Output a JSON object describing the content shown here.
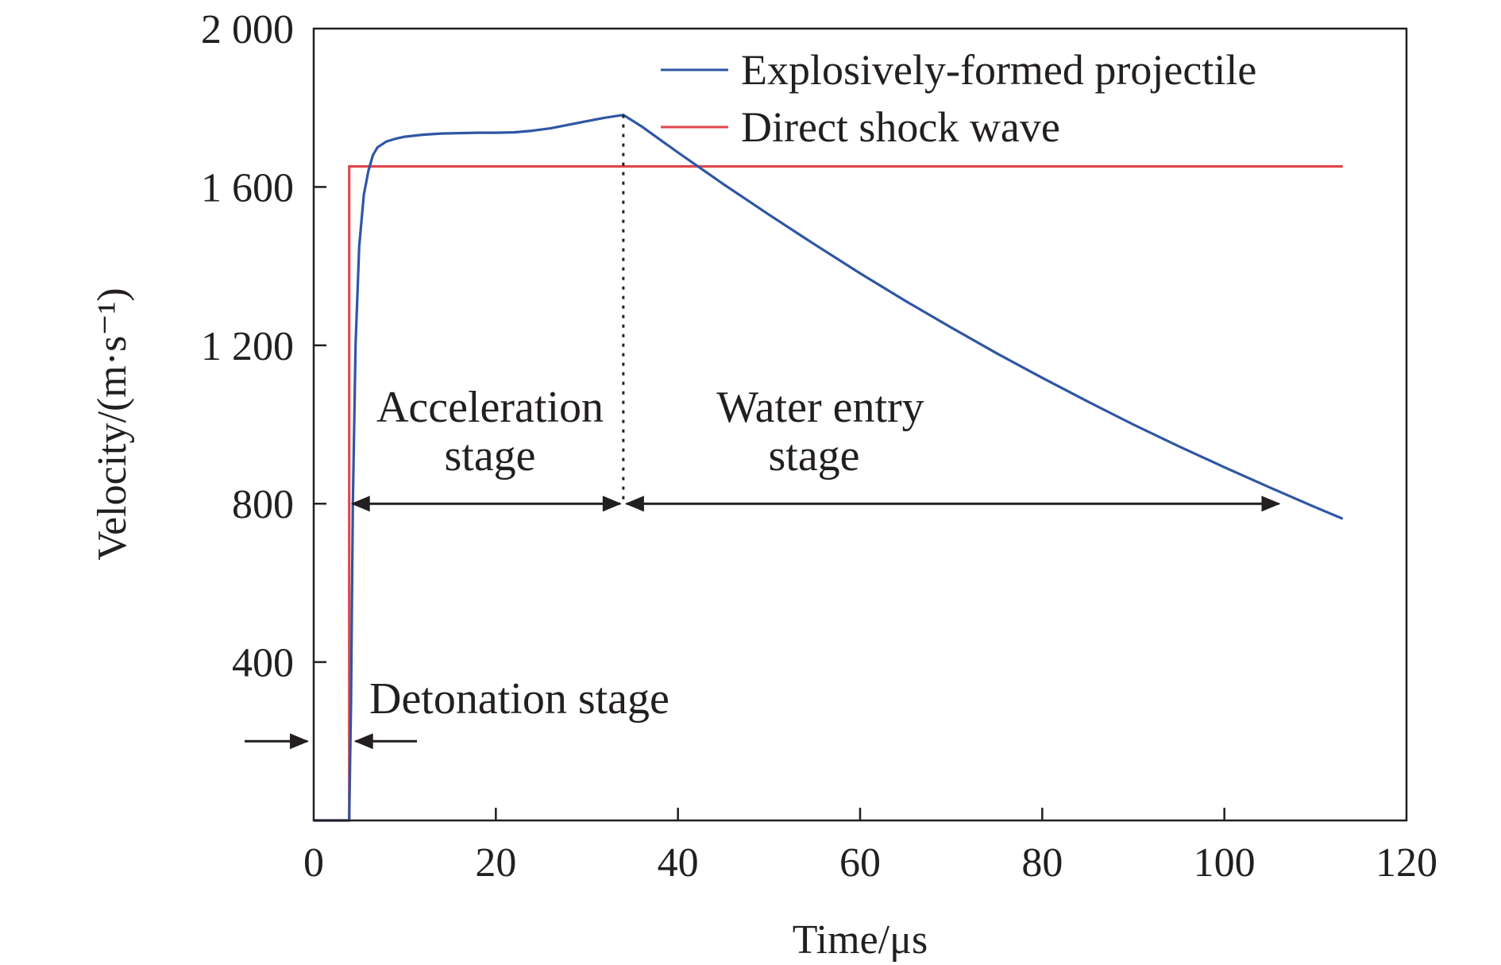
{
  "chart_data": {
    "type": "line",
    "title": "",
    "xlabel": "Time/μs",
    "ylabel": "Velocity/(m·s⁻¹)",
    "xlim": [
      0,
      120
    ],
    "ylim": [
      0,
      2000
    ],
    "x_ticks": [
      0,
      20,
      40,
      60,
      80,
      100,
      120
    ],
    "x_tick_labels": [
      "0",
      "20",
      "40",
      "60",
      "80",
      "100",
      "120"
    ],
    "y_ticks": [
      400,
      800,
      1200,
      1600,
      2000
    ],
    "y_tick_labels": [
      "400",
      "800",
      "1 200",
      "1 600",
      "2 000"
    ],
    "grid": false,
    "legend_position": "top-right",
    "series": [
      {
        "name": "Explosively-formed projectile",
        "color": "#2e56a3",
        "x": [
          0,
          3.9,
          4.1,
          4.3,
          4.6,
          5.0,
          5.5,
          6.0,
          6.5,
          7.0,
          8.0,
          9.0,
          10.0,
          12.0,
          14.0,
          16.0,
          18.0,
          20.0,
          22.0,
          24.0,
          26.0,
          28.0,
          30.0,
          32.0,
          34.0,
          36.0,
          38.0,
          40.0,
          45.0,
          50.0,
          55.0,
          60.0,
          65.0,
          70.0,
          75.0,
          80.0,
          85.0,
          90.0,
          95.0,
          100.0,
          105.0,
          110.0,
          113.0
        ],
        "y": [
          0,
          0,
          300,
          800,
          1200,
          1450,
          1580,
          1640,
          1680,
          1700,
          1715,
          1722,
          1727,
          1732,
          1735,
          1736,
          1737,
          1737,
          1738,
          1742,
          1748,
          1757,
          1766,
          1775,
          1782,
          1753,
          1720,
          1687,
          1607,
          1530,
          1455,
          1382,
          1312,
          1245,
          1180,
          1118,
          1058,
          1000,
          945,
          892,
          841,
          791,
          762
        ]
      },
      {
        "name": "Direct shock wave",
        "color": "#e0474c",
        "x": [
          0,
          3.9,
          3.9,
          113.0
        ],
        "y": [
          0,
          0,
          1652,
          1652
        ]
      }
    ],
    "annotations": {
      "acceleration_label_line1": "Acceleration",
      "acceleration_label_line2": "stage",
      "water_entry_label_line1": "Water entry",
      "water_entry_label_line2": "stage",
      "detonation_label": "Detonation stage",
      "stage_boundary_x": 34.0,
      "arrow_y": 800,
      "acceleration_arrow_x": [
        3.9,
        34.0
      ],
      "water_entry_arrow_x": [
        34.0,
        106.0
      ],
      "detonation_arrow_x": [
        0,
        3.9
      ],
      "detonation_arrow_y": 200
    }
  }
}
